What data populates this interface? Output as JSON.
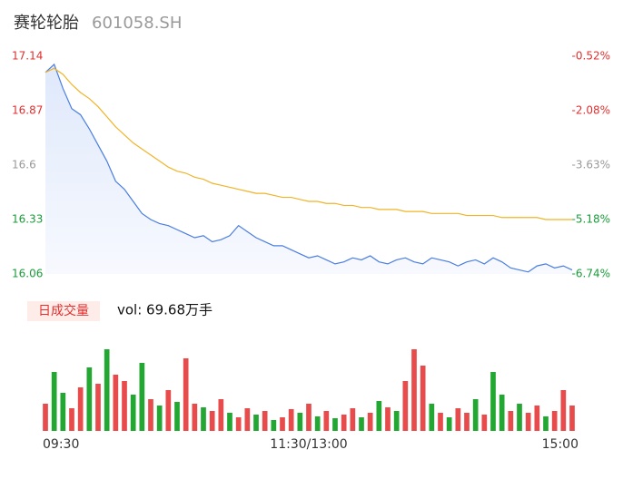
{
  "chart_data": {
    "type": "line",
    "title": "赛轮轮胎",
    "subtitle": "601058.SH",
    "xlim": [
      0,
      240
    ],
    "xticks": [
      {
        "value": 0,
        "label": "09:30"
      },
      {
        "value": 120,
        "label": "11:30/13:00"
      },
      {
        "value": 240,
        "label": "15:00"
      }
    ],
    "x": [
      0,
      4,
      8,
      12,
      16,
      20,
      24,
      28,
      32,
      36,
      40,
      44,
      48,
      52,
      56,
      60,
      64,
      68,
      72,
      76,
      80,
      84,
      88,
      92,
      96,
      100,
      104,
      108,
      112,
      116,
      120,
      124,
      128,
      132,
      136,
      140,
      144,
      148,
      152,
      156,
      160,
      164,
      168,
      172,
      176,
      180,
      184,
      188,
      192,
      196,
      200,
      204,
      208,
      212,
      216,
      220,
      224,
      228,
      232,
      236,
      240
    ],
    "ylim": [
      16.06,
      17.14
    ],
    "yticks": [
      17.14,
      16.87,
      16.6,
      16.33,
      16.06
    ],
    "tick_colors": [
      "#e03030",
      "#e03030",
      "#999999",
      "#1a9c3a",
      "#1a9c3a"
    ],
    "y2lim": [
      -6.74,
      -0.52
    ],
    "y2ticks": [
      {
        "value": -0.52,
        "label": "-0.52%"
      },
      {
        "value": -2.08,
        "label": "-2.08%"
      },
      {
        "value": -3.63,
        "label": "-3.63%"
      },
      {
        "value": -5.18,
        "label": "-5.18%"
      },
      {
        "value": -6.74,
        "label": "-6.74%"
      }
    ],
    "series": [
      {
        "name": "price",
        "color": "#4a7ee0",
        "values": [
          17.06,
          17.1,
          16.98,
          16.88,
          16.85,
          16.78,
          16.7,
          16.62,
          16.52,
          16.48,
          16.42,
          16.36,
          16.33,
          16.31,
          16.3,
          16.28,
          16.26,
          16.24,
          16.25,
          16.22,
          16.23,
          16.25,
          16.3,
          16.27,
          16.24,
          16.22,
          16.2,
          16.2,
          16.18,
          16.16,
          16.14,
          16.15,
          16.13,
          16.11,
          16.12,
          16.14,
          16.13,
          16.15,
          16.12,
          16.11,
          16.13,
          16.14,
          16.12,
          16.11,
          16.14,
          16.13,
          16.12,
          16.1,
          16.12,
          16.13,
          16.11,
          16.14,
          16.12,
          16.09,
          16.08,
          16.07,
          16.1,
          16.11,
          16.09,
          16.1,
          16.08
        ]
      },
      {
        "name": "average",
        "color": "#f0b429",
        "values": [
          17.06,
          17.08,
          17.05,
          17.0,
          16.96,
          16.93,
          16.89,
          16.84,
          16.79,
          16.75,
          16.71,
          16.68,
          16.65,
          16.62,
          16.59,
          16.57,
          16.56,
          16.54,
          16.53,
          16.51,
          16.5,
          16.49,
          16.48,
          16.47,
          16.46,
          16.46,
          16.45,
          16.44,
          16.44,
          16.43,
          16.42,
          16.42,
          16.41,
          16.41,
          16.4,
          16.4,
          16.39,
          16.39,
          16.38,
          16.38,
          16.38,
          16.37,
          16.37,
          16.37,
          16.36,
          16.36,
          16.36,
          16.36,
          16.35,
          16.35,
          16.35,
          16.35,
          16.34,
          16.34,
          16.34,
          16.34,
          16.34,
          16.33,
          16.33,
          16.33,
          16.33
        ]
      }
    ],
    "volume": {
      "legend": "日成交量",
      "label": "vol: 69.68万手",
      "ylim": [
        0,
        10000
      ],
      "values": [
        3000,
        6500,
        4200,
        2500,
        4800,
        7000,
        5200,
        9000,
        6200,
        5500,
        4000,
        7500,
        3500,
        2800,
        4500,
        3200,
        8000,
        3000,
        2600,
        2200,
        3500,
        2000,
        1500,
        2500,
        1800,
        2200,
        1200,
        1500,
        2400,
        2000,
        3000,
        1600,
        2200,
        1400,
        1800,
        2500,
        1500,
        2000,
        3300,
        2600,
        2200,
        5500,
        9000,
        7200,
        3000,
        2000,
        1500,
        2500,
        2000,
        3500,
        1800,
        6500,
        4000,
        2200,
        3000,
        2000,
        2800,
        1600,
        2200,
        4500,
        2800
      ],
      "colors": [
        "#e84b4b",
        "#22a832",
        "#22a832",
        "#e84b4b",
        "#e84b4b",
        "#22a832",
        "#e84b4b",
        "#22a832",
        "#e84b4b",
        "#e84b4b",
        "#22a832",
        "#22a832",
        "#e84b4b",
        "#22a832",
        "#e84b4b",
        "#22a832",
        "#e84b4b",
        "#e84b4b",
        "#22a832",
        "#e84b4b",
        "#e84b4b",
        "#22a832",
        "#e84b4b",
        "#e84b4b",
        "#22a832",
        "#e84b4b",
        "#22a832",
        "#e84b4b",
        "#e84b4b",
        "#22a832",
        "#e84b4b",
        "#22a832",
        "#e84b4b",
        "#22a832",
        "#e84b4b",
        "#e84b4b",
        "#22a832",
        "#e84b4b",
        "#22a832",
        "#e84b4b",
        "#22a832",
        "#e84b4b",
        "#e84b4b",
        "#e84b4b",
        "#22a832",
        "#e84b4b",
        "#22a832",
        "#e84b4b",
        "#e84b4b",
        "#22a832",
        "#e84b4b",
        "#22a832",
        "#22a832",
        "#e84b4b",
        "#22a832",
        "#e84b4b",
        "#e84b4b",
        "#22a832",
        "#e84b4b",
        "#e84b4b",
        "#e84b4b"
      ]
    }
  }
}
